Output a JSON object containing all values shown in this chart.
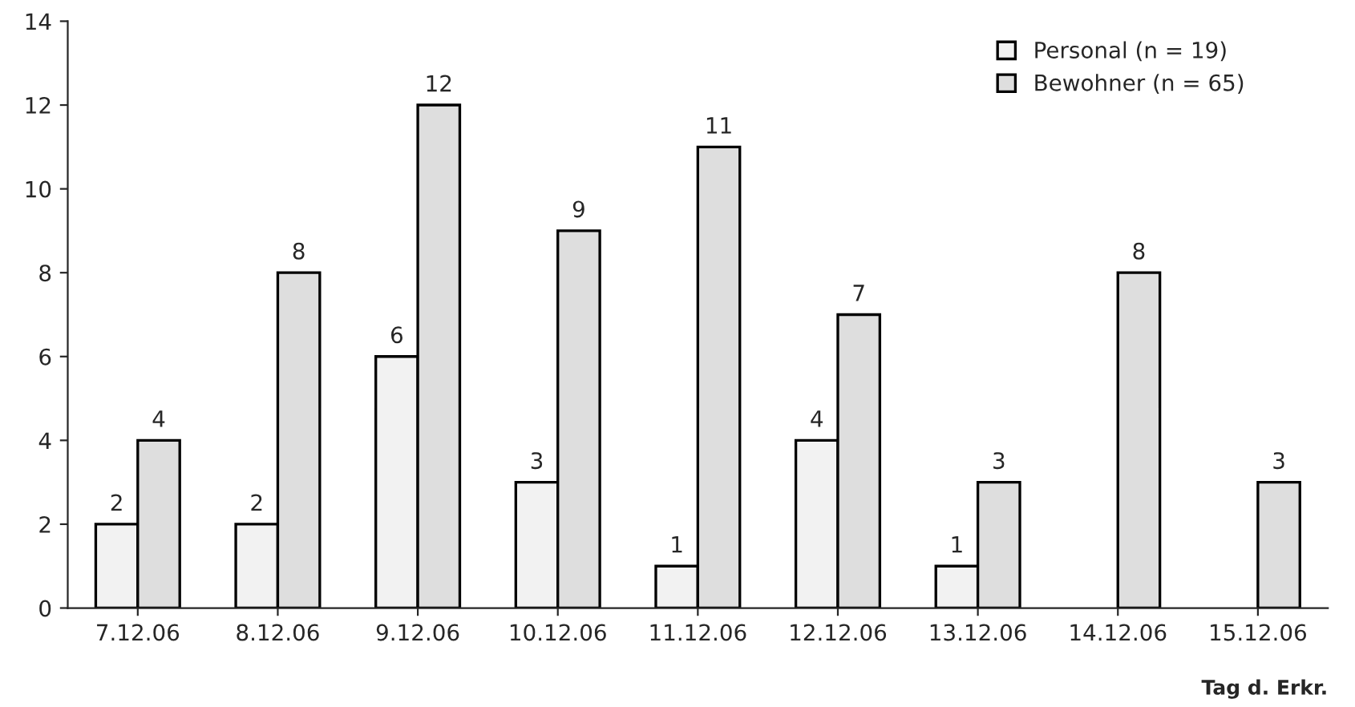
{
  "chart_data": {
    "type": "bar",
    "xlabel": "Tag d. Erkr.",
    "categories": [
      "7.12.06",
      "8.12.06",
      "9.12.06",
      "10.12.06",
      "11.12.06",
      "12.12.06",
      "13.12.06",
      "14.12.06",
      "15.12.06"
    ],
    "series": [
      {
        "name": "Personal (n = 19)",
        "color": "#f2f2f2",
        "values": [
          2,
          2,
          6,
          3,
          1,
          4,
          1,
          null,
          null
        ]
      },
      {
        "name": "Bewohner (n = 65)",
        "color": "#dedede",
        "values": [
          4,
          8,
          12,
          9,
          11,
          7,
          3,
          8,
          3
        ]
      }
    ],
    "ylim": [
      0,
      14
    ],
    "yticks": [
      0,
      2,
      4,
      6,
      8,
      10,
      12,
      14
    ],
    "data_labels": true,
    "grid": false,
    "legend": "top right"
  }
}
